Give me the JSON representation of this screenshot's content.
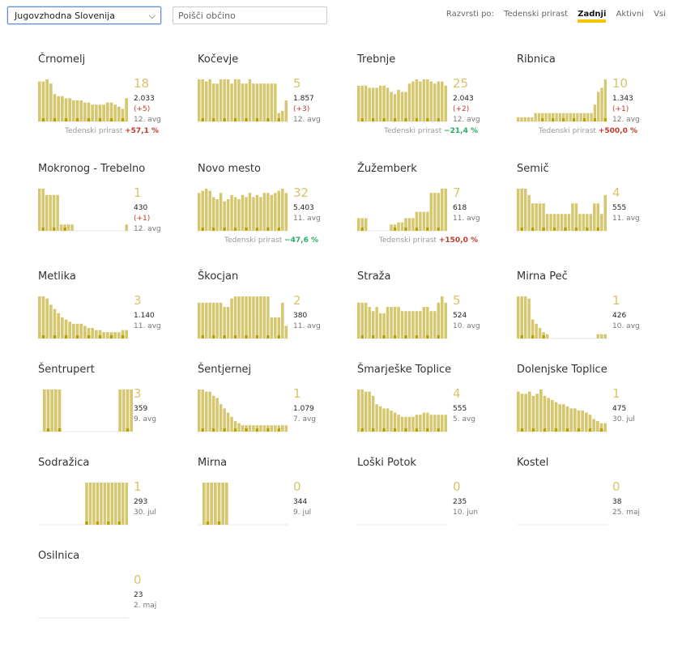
{
  "toolbar": {
    "region_value": "Jugovzhodna Slovenija",
    "search_placeholder": "Poišči občino",
    "sort_label": "Razvrsti po:",
    "sort_options": [
      "Tedenski prirast",
      "Zadnji",
      "Aktivni",
      "Vsi"
    ],
    "sort_active": "Zadnji"
  },
  "colors": {
    "bar": "#d6c76f",
    "bar_dark": "#b8a200",
    "up": "#c0392b",
    "down": "#27ae60",
    "accent": "#f5c400"
  },
  "icons": {
    "dropdown": "chevron-down-icon"
  },
  "prirast_label": "Tedenski prirast",
  "municipalities": [
    {
      "name": "Črnomelj",
      "active": "18",
      "population": "2.033",
      "delta": "(+5)",
      "date": "12. avg",
      "growth": "+57,1 %",
      "trend": "up",
      "bars": [
        0.95,
        0.95,
        1,
        0.9,
        0.65,
        0.6,
        0.6,
        0.55,
        0.55,
        0.5,
        0.5,
        0.5,
        0.45,
        0.45,
        0.4,
        0.4,
        0.4,
        0.4,
        0.45,
        0.45,
        0.4,
        0.35,
        0.3,
        0.55
      ]
    },
    {
      "name": "Kočevje",
      "active": "5",
      "population": "1.857",
      "delta": "(+3)",
      "date": "12. avg",
      "growth": "",
      "trend": "",
      "bars": [
        1,
        1,
        0.95,
        1,
        0.9,
        0.9,
        1,
        1,
        1,
        0.9,
        1,
        1,
        0.9,
        0.9,
        1,
        0.9,
        0.9,
        0.9,
        0.9,
        0.9,
        0.9,
        0.9,
        0.2,
        0.25,
        0.5
      ]
    },
    {
      "name": "Trebnje",
      "active": "25",
      "population": "2.043",
      "delta": "(+2)",
      "date": "12. avg",
      "growth": "−21,4 %",
      "trend": "down",
      "bars": [
        0.85,
        0.85,
        0.85,
        0.8,
        0.8,
        0.8,
        0.85,
        0.85,
        0.8,
        0.7,
        0.65,
        0.75,
        0.7,
        0.7,
        0.9,
        0.95,
        1,
        0.95,
        1,
        1,
        0.95,
        0.9,
        0.95,
        0.95,
        0.85
      ]
    },
    {
      "name": "Ribnica",
      "active": "10",
      "population": "1.343",
      "delta": "(+1)",
      "date": "12. avg",
      "growth": "+500,0 %",
      "trend": "up",
      "bars": [
        0.1,
        0.1,
        0.1,
        0.1,
        0.1,
        0.2,
        0.2,
        0.2,
        0.2,
        0.2,
        0.2,
        0.2,
        0.2,
        0.2,
        0.2,
        0.2,
        0.2,
        0.2,
        0.2,
        0.2,
        0.2,
        0.2,
        0.4,
        0.7,
        0.8,
        1
      ]
    },
    {
      "name": "Mokronog - Trebelno",
      "active": "1",
      "population": "430",
      "delta": "(+1)",
      "date": "12. avg",
      "growth": "",
      "trend": "",
      "bars": [
        1,
        1,
        0.85,
        0.85,
        0.85,
        0.85,
        0.15,
        0.15,
        0.15,
        0.15,
        0,
        0,
        0,
        0,
        0,
        0,
        0,
        0,
        0,
        0,
        0,
        0,
        0,
        0,
        0.15
      ]
    },
    {
      "name": "Novo mesto",
      "active": "32",
      "population": "5.403",
      "delta": "",
      "date": "11. avg",
      "growth": "−47,6 %",
      "trend": "down",
      "bars": [
        0.9,
        0.95,
        1,
        0.95,
        0.8,
        0.75,
        0.9,
        0.7,
        0.75,
        0.85,
        0.8,
        0.75,
        0.85,
        0.8,
        0.9,
        0.8,
        0.85,
        0.8,
        0.9,
        0.9,
        0.85,
        0.9,
        0.95,
        1,
        0.9
      ]
    },
    {
      "name": "Žužemberk",
      "active": "7",
      "population": "618",
      "delta": "",
      "date": "11. avg",
      "growth": "+150,0 %",
      "trend": "up",
      "bars": [
        0.3,
        0.3,
        0.3,
        0,
        0,
        0,
        0,
        0,
        0,
        0.15,
        0.15,
        0.2,
        0.2,
        0.3,
        0.3,
        0.3,
        0.45,
        0.45,
        0.45,
        0.45,
        0.9,
        0.9,
        0.9,
        1,
        1
      ]
    },
    {
      "name": "Semič",
      "active": "4",
      "population": "555",
      "delta": "",
      "date": "11. avg",
      "growth": "",
      "trend": "",
      "bars": [
        1,
        1,
        1,
        0.85,
        0.65,
        0.65,
        0.65,
        0.65,
        0.4,
        0.4,
        0.4,
        0.4,
        0.4,
        0.4,
        0.4,
        0.65,
        0.65,
        0.4,
        0.4,
        0.4,
        0.4,
        0.65,
        0.65,
        0.4,
        0.85
      ]
    },
    {
      "name": "Metlika",
      "active": "3",
      "population": "1.140",
      "delta": "",
      "date": "11. avg",
      "growth": "",
      "trend": "",
      "bars": [
        1,
        1,
        0.95,
        0.8,
        0.7,
        0.6,
        0.5,
        0.45,
        0.4,
        0.35,
        0.35,
        0.35,
        0.3,
        0.25,
        0.25,
        0.2,
        0.2,
        0.15,
        0.15,
        0.15,
        0.15,
        0.15,
        0.2,
        0.2
      ]
    },
    {
      "name": "Škocjan",
      "active": "2",
      "population": "380",
      "delta": "",
      "date": "11. avg",
      "growth": "",
      "trend": "",
      "bars": [
        0.85,
        0.85,
        0.85,
        0.85,
        0.85,
        0.85,
        0.85,
        0.75,
        0.75,
        0.95,
        1,
        1,
        1,
        1,
        1,
        1,
        1,
        1,
        1,
        1,
        0.5,
        0.5,
        0.5,
        0.85,
        0.3
      ]
    },
    {
      "name": "Straža",
      "active": "5",
      "population": "524",
      "delta": "",
      "date": "10. avg",
      "growth": "",
      "trend": "",
      "bars": [
        0.85,
        0.85,
        0.85,
        0.75,
        0.65,
        0.75,
        0.6,
        0.6,
        0.75,
        0.75,
        0.75,
        0.75,
        0.65,
        0.65,
        0.65,
        0.65,
        0.65,
        0.65,
        0.75,
        0.75,
        0.65,
        0.65,
        0.85,
        1,
        0.85
      ]
    },
    {
      "name": "Mirna Peč",
      "active": "1",
      "population": "426",
      "delta": "",
      "date": "10. avg",
      "growth": "",
      "trend": "",
      "bars": [
        1,
        1,
        1,
        0.95,
        0.45,
        0.35,
        0.25,
        0.15,
        0.1,
        0,
        0,
        0,
        0,
        0,
        0,
        0,
        0,
        0,
        0,
        0,
        0,
        0,
        0.1,
        0.1,
        0.1
      ]
    },
    {
      "name": "Šentrupert",
      "active": "3",
      "population": "359",
      "delta": "",
      "date": "9. avg",
      "growth": "",
      "trend": "",
      "bars": [
        1,
        1,
        1,
        1,
        1,
        0,
        0,
        0,
        0,
        0,
        0,
        0,
        0,
        0,
        0,
        0,
        0,
        0,
        0,
        0,
        1,
        1,
        1,
        1
      ]
    },
    {
      "name": "Šentjernej",
      "active": "1",
      "population": "1.079",
      "delta": "",
      "date": "7. avg",
      "growth": "",
      "trend": "",
      "bars": [
        1,
        1,
        0.95,
        0.95,
        0.85,
        0.8,
        0.65,
        0.55,
        0.45,
        0.35,
        0.25,
        0.2,
        0.15,
        0.15,
        0.15,
        0.15,
        0.15,
        0.15,
        0.15,
        0.15,
        0.15,
        0.15,
        0.15,
        0.15,
        0.15
      ]
    },
    {
      "name": "Šmarješke Toplice",
      "active": "4",
      "population": "555",
      "delta": "",
      "date": "5. avg",
      "growth": "",
      "trend": "",
      "bars": [
        1,
        1,
        0.95,
        0.95,
        0.85,
        0.65,
        0.6,
        0.55,
        0.55,
        0.5,
        0.45,
        0.4,
        0.35,
        0.35,
        0.35,
        0.35,
        0.4,
        0.4,
        0.45,
        0.45,
        0.4,
        0.4,
        0.4,
        0.4,
        0.4
      ]
    },
    {
      "name": "Dolenjske Toplice",
      "active": "1",
      "population": "475",
      "delta": "",
      "date": "30. jul",
      "growth": "",
      "trend": "",
      "bars": [
        0.95,
        0.9,
        0.9,
        0.95,
        0.85,
        0.9,
        1,
        0.85,
        0.8,
        0.75,
        0.7,
        0.65,
        0.65,
        0.6,
        0.55,
        0.55,
        0.5,
        0.5,
        0.45,
        0.4,
        0.3,
        0.25,
        0.2,
        0.2
      ]
    },
    {
      "name": "Sodražica",
      "active": "1",
      "population": "293",
      "delta": "",
      "date": "30. jul",
      "growth": "",
      "trend": "",
      "bars": [
        0,
        0,
        0,
        0,
        0,
        0,
        0,
        0,
        0,
        0,
        0,
        0,
        0,
        1,
        1,
        1,
        1,
        1,
        1,
        1,
        1,
        1,
        1,
        1,
        1
      ]
    },
    {
      "name": "Mirna",
      "active": "0",
      "population": "344",
      "delta": "",
      "date": "9. jul",
      "growth": "",
      "trend": "",
      "bars": [
        1,
        1,
        1,
        1,
        1,
        1,
        1
      ]
    },
    {
      "name": "Loški Potok",
      "active": "0",
      "population": "235",
      "delta": "",
      "date": "10. jun",
      "growth": "",
      "trend": "",
      "bars": []
    },
    {
      "name": "Kostel",
      "active": "0",
      "population": "38",
      "delta": "",
      "date": "25. maj",
      "growth": "",
      "trend": "",
      "bars": []
    },
    {
      "name": "Osilnica",
      "active": "0",
      "population": "23",
      "delta": "",
      "date": "2. maj",
      "growth": "",
      "trend": "",
      "bars": []
    }
  ]
}
